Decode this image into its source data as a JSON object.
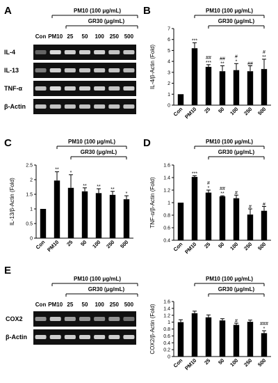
{
  "figure": {
    "panels": [
      {
        "letter": "A",
        "treatment_header": "PM10 (100 μg/mL)",
        "dose_header": "GR30 (μg/mL)",
        "lanes": [
          "Con",
          "PM10",
          "25",
          "50",
          "100",
          "250",
          "500"
        ],
        "bands": [
          "IL-4",
          "IL-13",
          "TNF-α",
          "β-Actin"
        ]
      },
      {
        "letter": "E",
        "treatment_header": "PM10 (100 μg/mL)",
        "dose_header": "GR30 (μg/mL)",
        "lanes": [
          "Con",
          "PM10",
          "25",
          "50",
          "100",
          "250",
          "500"
        ],
        "bands": [
          "COX2",
          "β-Actin"
        ]
      }
    ]
  },
  "chart_data": [
    {
      "letter": "B",
      "type": "bar",
      "treatment_header": "PM10 (100 μg/mL)",
      "dose_header": "GR30 (μg/mL)",
      "categories": [
        "Con",
        "PM10",
        "25",
        "50",
        "100",
        "250",
        "500"
      ],
      "values": [
        1.0,
        5.2,
        3.5,
        3.1,
        3.2,
        3.1,
        3.3
      ],
      "errors": [
        0.0,
        0.5,
        0.2,
        0.5,
        0.6,
        0.5,
        0.9
      ],
      "significance": [
        [
          "",
          ""
        ],
        [
          "***",
          ""
        ],
        [
          "##",
          "***"
        ],
        [
          "##",
          "**"
        ],
        [
          "#",
          "*"
        ],
        [
          "##",
          ""
        ],
        [
          "#",
          "**"
        ]
      ],
      "ylabel": "IL-4/β-Actin (Fold)",
      "ylim": [
        0,
        7
      ],
      "yticks": [
        "0",
        "1",
        "2",
        "3",
        "4",
        "5",
        "6",
        "7"
      ]
    },
    {
      "letter": "C",
      "type": "bar",
      "treatment_header": "PM10 (100 μg/mL)",
      "dose_header": "GR30 (μg/mL)",
      "categories": [
        "Con",
        "PM10",
        "25",
        "50",
        "100",
        "250",
        "500"
      ],
      "values": [
        1.0,
        1.97,
        1.72,
        1.6,
        1.54,
        1.48,
        1.33
      ],
      "errors": [
        0.0,
        0.3,
        0.45,
        0.12,
        0.15,
        0.12,
        0.12
      ],
      "significance": [
        [
          "",
          ""
        ],
        [
          "**",
          ""
        ],
        [
          "*",
          ""
        ],
        [
          "**",
          ""
        ],
        [
          "**",
          ""
        ],
        [
          "**",
          ""
        ],
        [
          "*",
          ""
        ]
      ],
      "ylabel": "IL-13/β-Actin (Fold)",
      "ylim": [
        0,
        2.5
      ],
      "yticks": [
        "0",
        "0.5",
        "1",
        "1.5",
        "2",
        "2.5"
      ]
    },
    {
      "letter": "D",
      "type": "bar",
      "treatment_header": "PM10 (100 μg/mL)",
      "dose_header": "GR30 (μg/mL)",
      "categories": [
        "Con",
        "PM10",
        "25",
        "50",
        "100",
        "250",
        "500"
      ],
      "values": [
        1.0,
        1.41,
        1.16,
        1.1,
        1.07,
        0.81,
        0.87
      ],
      "errors": [
        0.0,
        0.02,
        0.04,
        0.01,
        0.05,
        0.09,
        0.07
      ],
      "significance": [
        [
          "",
          ""
        ],
        [
          "***",
          ""
        ],
        [
          "#",
          "*"
        ],
        [
          "##",
          "**"
        ],
        [
          "#",
          ""
        ],
        [
          "#",
          ""
        ],
        [
          "#",
          ""
        ]
      ],
      "ylabel": "TNF-α/β-Actin (Fold)",
      "ylim": [
        0.4,
        1.6
      ],
      "yticks": [
        "0.4",
        "0.6",
        "0.8",
        "1",
        "1.2",
        "1.4",
        "1.6"
      ]
    },
    {
      "letter": "",
      "type": "bar",
      "treatment_header": "PM10 (100 μg/mL)",
      "dose_header": "GR30 (μg/mL)",
      "categories": [
        "Con",
        "PM10",
        "25",
        "50",
        "100",
        "250",
        "500"
      ],
      "values": [
        1.0,
        1.26,
        1.14,
        1.05,
        0.92,
        1.01,
        0.68
      ],
      "errors": [
        0.07,
        0.06,
        0.07,
        0.05,
        0.05,
        0.05,
        0.07
      ],
      "significance": [
        [
          "",
          ""
        ],
        [
          "",
          ""
        ],
        [
          "",
          ""
        ],
        [
          "",
          ""
        ],
        [
          "#",
          ""
        ],
        [
          "",
          ""
        ],
        [
          "###",
          "*"
        ]
      ],
      "ylabel": "COX2/β-Actin (Fold)",
      "ylim": [
        0,
        1.6
      ],
      "yticks": [
        "0",
        "0.2",
        "0.4",
        "0.6",
        "0.8",
        "1",
        "1.2",
        "1.4",
        "1.6"
      ]
    }
  ]
}
